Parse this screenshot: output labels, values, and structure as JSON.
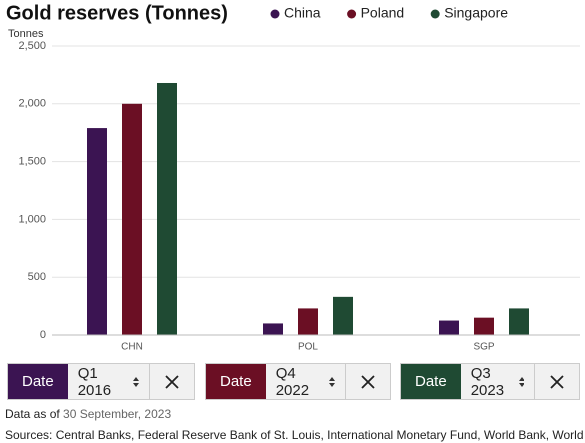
{
  "chart_data": {
    "type": "bar",
    "title": "Gold reserves (Tonnes)",
    "y_label": "Tonnes",
    "categories": [
      "CHN",
      "POL",
      "SGP"
    ],
    "series": [
      {
        "name": "China",
        "color": "#3b1452",
        "values": [
          1790,
          100,
          125
        ]
      },
      {
        "name": "Poland",
        "color": "#6b0f24",
        "values": [
          2000,
          230,
          150
        ]
      },
      {
        "name": "Singapore",
        "color": "#1f4a33",
        "values": [
          2180,
          330,
          230
        ]
      }
    ],
    "ylim": [
      0,
      2500
    ],
    "yticks": [
      0,
      500,
      {
        "value": 1000,
        "label": "1,000"
      },
      {
        "value": 1500,
        "label": "1,500"
      },
      {
        "value": 2000,
        "label": "2,000"
      },
      {
        "value": 2500,
        "label": "2,500"
      }
    ],
    "grid": true
  },
  "controls": [
    {
      "label": "Date",
      "value": "Q1 2016",
      "color": "#3b1452"
    },
    {
      "label": "Date",
      "value": "Q4 2022",
      "color": "#6b0f24"
    },
    {
      "label": "Date",
      "value": "Q3 2023",
      "color": "#1f4a33"
    }
  ],
  "footer": {
    "as_of_label": "Data as of",
    "as_of_date": "30 September, 2023",
    "sources": "Sources: Central Banks, Federal Reserve Bank of St. Louis, International Monetary Fund, World Bank, World Gold Council"
  }
}
